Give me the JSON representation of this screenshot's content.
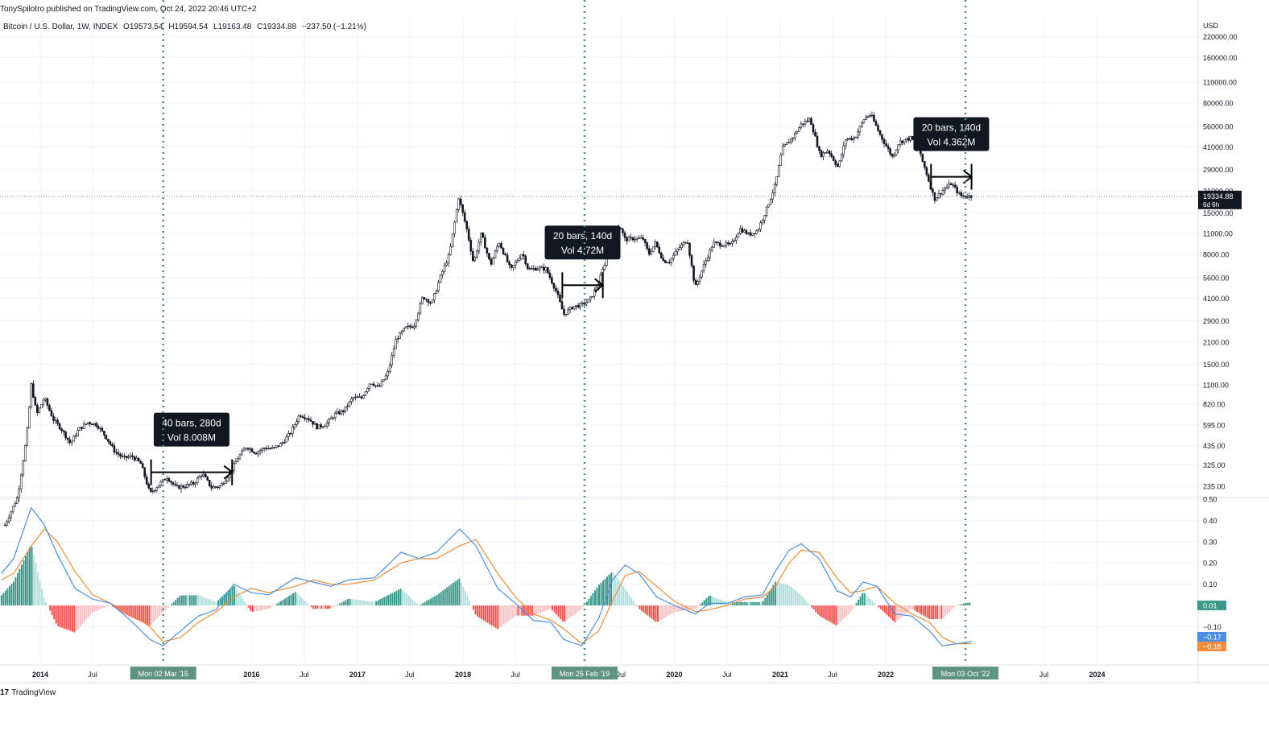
{
  "header": {
    "publisher_line": "TonySpilotro published on TradingView.com, Oct 24, 2022 20:46 UTC+2"
  },
  "legend": {
    "symbol": "Bitcoin / U.S. Dollar, 1W, INDEX",
    "open": "O19573.54",
    "high": "H19594.54",
    "low": "L19163.48",
    "close": "C19334.88",
    "change": "−237.50 (−1.21%)"
  },
  "brand": {
    "name": "TradingView",
    "mark": "17"
  },
  "colors": {
    "candles": "#131722",
    "grid": "#f0f3fa",
    "vline": "#4e8f7c",
    "macd_line": "#4a90e2",
    "signal_line": "#f08c3a",
    "hist_pos_strong": "#3a9a8a",
    "hist_pos_weak": "#b2dfdb",
    "hist_neg_strong": "#ef5350",
    "hist_neg_weak": "#f7c2c2",
    "price_tag_bg": "#131722"
  },
  "chart_data": [
    {
      "type": "candlestick",
      "title": "",
      "scale": "log",
      "currency_label": "USD",
      "y_ticks": [
        "220000.00",
        "160000.00",
        "110000.00",
        "80000.00",
        "56000.00",
        "41000.00",
        "29000.00",
        "21000.00",
        "15000.00",
        "11000.00",
        "8000.00",
        "5600.00",
        "4100.00",
        "2900.00",
        "2100.00",
        "1500.00",
        "1100.00",
        "820.00",
        "595.00",
        "435.00",
        "325.00",
        "235.00"
      ],
      "y_range": [
        200,
        300000
      ],
      "x_ticks": [
        {
          "label": "2014",
          "date": "2014-01-01",
          "bold": true
        },
        {
          "label": "Jul",
          "date": "2014-07-01",
          "bold": false
        },
        {
          "label": "2016",
          "date": "2016-01-01",
          "bold": true
        },
        {
          "label": "Jul",
          "date": "2016-07-01",
          "bold": false
        },
        {
          "label": "2017",
          "date": "2017-01-01",
          "bold": true
        },
        {
          "label": "Jul",
          "date": "2017-07-01",
          "bold": false
        },
        {
          "label": "2018",
          "date": "2018-01-01",
          "bold": true
        },
        {
          "label": "Jul",
          "date": "2018-07-01",
          "bold": false
        },
        {
          "label": "Jul",
          "date": "2019-07-01",
          "bold": false
        },
        {
          "label": "2020",
          "date": "2020-01-01",
          "bold": true
        },
        {
          "label": "Jul",
          "date": "2020-07-01",
          "bold": false
        },
        {
          "label": "2021",
          "date": "2021-01-01",
          "bold": true
        },
        {
          "label": "Jul",
          "date": "2021-07-01",
          "bold": false
        },
        {
          "label": "2022",
          "date": "2022-01-01",
          "bold": true
        },
        {
          "label": "Jul",
          "date": "2023-07-01",
          "bold": false
        },
        {
          "label": "2024",
          "date": "2024-01-01",
          "bold": true
        }
      ],
      "x_range": [
        "2013-08-15",
        "2024-12-15"
      ],
      "last_price": {
        "value": 19334.88,
        "label": "19334.88",
        "countdown": "6d 6h"
      },
      "price_path": [
        [
          "2013-09-01",
          130
        ],
        [
          "2013-10-15",
          200
        ],
        [
          "2013-11-15",
          500
        ],
        [
          "2013-12-01",
          1100
        ],
        [
          "2013-12-20",
          700
        ],
        [
          "2014-01-15",
          900
        ],
        [
          "2014-02-15",
          650
        ],
        [
          "2014-03-15",
          560
        ],
        [
          "2014-04-15",
          450
        ],
        [
          "2014-05-15",
          560
        ],
        [
          "2014-06-15",
          620
        ],
        [
          "2014-07-15",
          600
        ],
        [
          "2014-08-15",
          500
        ],
        [
          "2014-09-15",
          400
        ],
        [
          "2014-10-15",
          360
        ],
        [
          "2014-11-15",
          370
        ],
        [
          "2014-12-15",
          330
        ],
        [
          "2015-01-15",
          210
        ],
        [
          "2015-02-15",
          240
        ],
        [
          "2015-03-15",
          270
        ],
        [
          "2015-04-15",
          230
        ],
        [
          "2015-05-15",
          235
        ],
        [
          "2015-06-15",
          245
        ],
        [
          "2015-07-15",
          285
        ],
        [
          "2015-08-15",
          230
        ],
        [
          "2015-09-15",
          235
        ],
        [
          "2015-10-15",
          280
        ],
        [
          "2015-11-15",
          360
        ],
        [
          "2015-12-15",
          430
        ],
        [
          "2016-01-15",
          390
        ],
        [
          "2016-02-15",
          420
        ],
        [
          "2016-03-15",
          415
        ],
        [
          "2016-04-15",
          450
        ],
        [
          "2016-05-15",
          530
        ],
        [
          "2016-06-15",
          700
        ],
        [
          "2016-07-15",
          660
        ],
        [
          "2016-08-15",
          575
        ],
        [
          "2016-09-15",
          605
        ],
        [
          "2016-10-15",
          700
        ],
        [
          "2016-11-15",
          740
        ],
        [
          "2016-12-15",
          900
        ],
        [
          "2017-01-15",
          900
        ],
        [
          "2017-02-15",
          1150
        ],
        [
          "2017-03-15",
          1050
        ],
        [
          "2017-04-15",
          1300
        ],
        [
          "2017-05-15",
          2200
        ],
        [
          "2017-06-15",
          2600
        ],
        [
          "2017-07-15",
          2700
        ],
        [
          "2017-08-15",
          4200
        ],
        [
          "2017-09-15",
          3800
        ],
        [
          "2017-10-15",
          5700
        ],
        [
          "2017-11-15",
          8000
        ],
        [
          "2017-12-17",
          19000
        ],
        [
          "2018-01-15",
          11500
        ],
        [
          "2018-02-06",
          7000
        ],
        [
          "2018-03-05",
          11000
        ],
        [
          "2018-04-06",
          6800
        ],
        [
          "2018-05-05",
          9700
        ],
        [
          "2018-06-15",
          6300
        ],
        [
          "2018-07-25",
          8200
        ],
        [
          "2018-08-15",
          6300
        ],
        [
          "2018-09-15",
          6500
        ],
        [
          "2018-10-15",
          6400
        ],
        [
          "2018-11-20",
          4500
        ],
        [
          "2018-12-15",
          3200
        ],
        [
          "2019-01-15",
          3600
        ],
        [
          "2019-02-15",
          3700
        ],
        [
          "2019-03-15",
          4000
        ],
        [
          "2019-04-15",
          5200
        ],
        [
          "2019-05-15",
          8000
        ],
        [
          "2019-06-26",
          12500
        ],
        [
          "2019-07-15",
          10000
        ],
        [
          "2019-08-15",
          10200
        ],
        [
          "2019-09-15",
          10100
        ],
        [
          "2019-10-05",
          8000
        ],
        [
          "2019-10-27",
          9500
        ],
        [
          "2019-11-25",
          7200
        ],
        [
          "2019-12-15",
          7200
        ],
        [
          "2020-01-15",
          8700
        ],
        [
          "2020-02-15",
          10000
        ],
        [
          "2020-03-13",
          4800
        ],
        [
          "2020-04-15",
          7000
        ],
        [
          "2020-05-15",
          9500
        ],
        [
          "2020-06-15",
          9300
        ],
        [
          "2020-07-15",
          9200
        ],
        [
          "2020-08-15",
          11800
        ],
        [
          "2020-09-15",
          10800
        ],
        [
          "2020-10-15",
          11500
        ],
        [
          "2020-11-15",
          16000
        ],
        [
          "2020-12-15",
          23000
        ],
        [
          "2021-01-08",
          40000
        ],
        [
          "2021-02-15",
          48000
        ],
        [
          "2021-03-15",
          58000
        ],
        [
          "2021-04-14",
          63000
        ],
        [
          "2021-05-19",
          36000
        ],
        [
          "2021-06-15",
          39000
        ],
        [
          "2021-07-20",
          30000
        ],
        [
          "2021-08-15",
          46000
        ],
        [
          "2021-09-15",
          47000
        ],
        [
          "2021-10-20",
          64000
        ],
        [
          "2021-11-10",
          67000
        ],
        [
          "2021-12-15",
          48000
        ],
        [
          "2022-01-24",
          35000
        ],
        [
          "2022-02-15",
          44000
        ],
        [
          "2022-03-28",
          47000
        ],
        [
          "2022-04-20",
          41000
        ],
        [
          "2022-05-15",
          30000
        ],
        [
          "2022-06-18",
          18500
        ],
        [
          "2022-07-15",
          21000
        ],
        [
          "2022-08-15",
          23500
        ],
        [
          "2022-09-15",
          19500
        ],
        [
          "2022-10-24",
          19334.88
        ]
      ],
      "annotations": [
        {
          "label": "40 bars, 280d",
          "sub": "Vol 8.008M",
          "start": "2015-01-19",
          "end": "2015-10-26",
          "start_price": 290,
          "end_price": 290,
          "tip_price": 300
        },
        {
          "label": "20 bars, 140d",
          "sub": "Vol 4.72M",
          "start": "2018-12-10",
          "end": "2019-04-29",
          "start_price": 5000,
          "end_price": 5000,
          "tip_price": 5000
        },
        {
          "label": "20 bars, 140d",
          "sub": "Vol 4.362M",
          "start": "2022-06-06",
          "end": "2022-10-24",
          "start_price": 26000,
          "end_price": 26000,
          "tip_price": 26000
        }
      ]
    },
    {
      "type": "macd",
      "title": "",
      "y_ticks": [
        "0.50",
        "0.40",
        "0.30",
        "0.20",
        "0.10",
        "−0.10"
      ],
      "y_range": [
        -0.28,
        0.5
      ],
      "current_values": [
        {
          "label": "0.01",
          "color": "#3a9a8a"
        },
        {
          "label": "−0.17",
          "color": "#4a90e2"
        },
        {
          "label": "−0.18",
          "color": "#f08c3a"
        }
      ],
      "macd_path": [
        [
          "2013-08-20",
          0.15
        ],
        [
          "2013-10-01",
          0.22
        ],
        [
          "2013-12-01",
          0.46
        ],
        [
          "2014-01-15",
          0.38
        ],
        [
          "2014-03-01",
          0.24
        ],
        [
          "2014-05-01",
          0.08
        ],
        [
          "2014-07-01",
          0.03
        ],
        [
          "2014-09-01",
          0.01
        ],
        [
          "2014-11-01",
          -0.06
        ],
        [
          "2015-01-15",
          -0.16
        ],
        [
          "2015-03-01",
          -0.19
        ],
        [
          "2015-05-01",
          -0.12
        ],
        [
          "2015-07-01",
          -0.05
        ],
        [
          "2015-09-01",
          -0.02
        ],
        [
          "2015-11-01",
          0.1
        ],
        [
          "2016-01-01",
          0.06
        ],
        [
          "2016-03-01",
          0.05
        ],
        [
          "2016-06-01",
          0.13
        ],
        [
          "2016-08-01",
          0.11
        ],
        [
          "2016-10-01",
          0.09
        ],
        [
          "2016-12-01",
          0.12
        ],
        [
          "2017-03-01",
          0.13
        ],
        [
          "2017-06-01",
          0.25
        ],
        [
          "2017-08-01",
          0.22
        ],
        [
          "2017-10-01",
          0.25
        ],
        [
          "2017-12-20",
          0.36
        ],
        [
          "2018-02-15",
          0.28
        ],
        [
          "2018-05-01",
          0.08
        ],
        [
          "2018-07-01",
          0.01
        ],
        [
          "2018-09-01",
          -0.07
        ],
        [
          "2018-11-01",
          -0.08
        ],
        [
          "2018-12-15",
          -0.16
        ],
        [
          "2019-02-15",
          -0.19
        ],
        [
          "2019-04-15",
          -0.06
        ],
        [
          "2019-06-01",
          0.12
        ],
        [
          "2019-07-15",
          0.19
        ],
        [
          "2019-09-01",
          0.15
        ],
        [
          "2019-11-01",
          0.04
        ],
        [
          "2020-01-01",
          0.0
        ],
        [
          "2020-03-15",
          -0.04
        ],
        [
          "2020-05-01",
          0.01
        ],
        [
          "2020-07-01",
          0.01
        ],
        [
          "2020-09-01",
          0.04
        ],
        [
          "2020-11-01",
          0.05
        ],
        [
          "2020-12-15",
          0.16
        ],
        [
          "2021-02-01",
          0.26
        ],
        [
          "2021-03-15",
          0.29
        ],
        [
          "2021-05-15",
          0.22
        ],
        [
          "2021-07-15",
          0.07
        ],
        [
          "2021-09-01",
          0.04
        ],
        [
          "2021-10-15",
          0.11
        ],
        [
          "2021-12-01",
          0.09
        ],
        [
          "2022-02-01",
          -0.04
        ],
        [
          "2022-04-01",
          -0.05
        ],
        [
          "2022-06-01",
          -0.12
        ],
        [
          "2022-07-15",
          -0.19
        ],
        [
          "2022-09-01",
          -0.18
        ],
        [
          "2022-10-24",
          -0.17
        ]
      ],
      "signal_path": [
        [
          "2013-08-20",
          0.12
        ],
        [
          "2013-10-01",
          0.15
        ],
        [
          "2013-12-01",
          0.28
        ],
        [
          "2014-01-15",
          0.36
        ],
        [
          "2014-03-01",
          0.3
        ],
        [
          "2014-05-01",
          0.16
        ],
        [
          "2014-07-01",
          0.05
        ],
        [
          "2014-09-01",
          0.01
        ],
        [
          "2014-11-01",
          -0.03
        ],
        [
          "2015-01-15",
          -0.1
        ],
        [
          "2015-03-01",
          -0.17
        ],
        [
          "2015-05-01",
          -0.15
        ],
        [
          "2015-07-01",
          -0.08
        ],
        [
          "2015-09-01",
          -0.03
        ],
        [
          "2015-11-01",
          0.04
        ],
        [
          "2016-01-01",
          0.08
        ],
        [
          "2016-03-01",
          0.06
        ],
        [
          "2016-06-01",
          0.09
        ],
        [
          "2016-08-01",
          0.12
        ],
        [
          "2016-10-01",
          0.1
        ],
        [
          "2016-12-01",
          0.1
        ],
        [
          "2017-03-01",
          0.12
        ],
        [
          "2017-06-01",
          0.2
        ],
        [
          "2017-08-01",
          0.22
        ],
        [
          "2017-10-01",
          0.22
        ],
        [
          "2017-12-20",
          0.28
        ],
        [
          "2018-02-15",
          0.31
        ],
        [
          "2018-05-01",
          0.15
        ],
        [
          "2018-07-01",
          0.04
        ],
        [
          "2018-09-01",
          -0.04
        ],
        [
          "2018-11-01",
          -0.07
        ],
        [
          "2018-12-15",
          -0.11
        ],
        [
          "2019-02-15",
          -0.18
        ],
        [
          "2019-04-15",
          -0.12
        ],
        [
          "2019-06-01",
          0.02
        ],
        [
          "2019-07-15",
          0.14
        ],
        [
          "2019-09-01",
          0.16
        ],
        [
          "2019-11-01",
          0.09
        ],
        [
          "2020-01-01",
          0.02
        ],
        [
          "2020-03-15",
          -0.03
        ],
        [
          "2020-05-01",
          -0.02
        ],
        [
          "2020-07-01",
          0.0
        ],
        [
          "2020-09-01",
          0.03
        ],
        [
          "2020-11-01",
          0.04
        ],
        [
          "2020-12-15",
          0.09
        ],
        [
          "2021-02-01",
          0.2
        ],
        [
          "2021-03-15",
          0.26
        ],
        [
          "2021-05-15",
          0.25
        ],
        [
          "2021-07-15",
          0.13
        ],
        [
          "2021-09-01",
          0.06
        ],
        [
          "2021-10-15",
          0.07
        ],
        [
          "2021-12-01",
          0.09
        ],
        [
          "2022-02-01",
          0.01
        ],
        [
          "2022-04-01",
          -0.04
        ],
        [
          "2022-06-01",
          -0.08
        ],
        [
          "2022-07-15",
          -0.15
        ],
        [
          "2022-09-01",
          -0.18
        ],
        [
          "2022-10-24",
          -0.18
        ]
      ]
    }
  ],
  "vertical_markers": [
    {
      "date": "2015-03-02",
      "label": "Mon 02 Mar '15"
    },
    {
      "date": "2019-02-25",
      "label": "Mon 25 Feb '19"
    },
    {
      "date": "2022-10-03",
      "label": "Mon 03 Oct '22"
    }
  ]
}
